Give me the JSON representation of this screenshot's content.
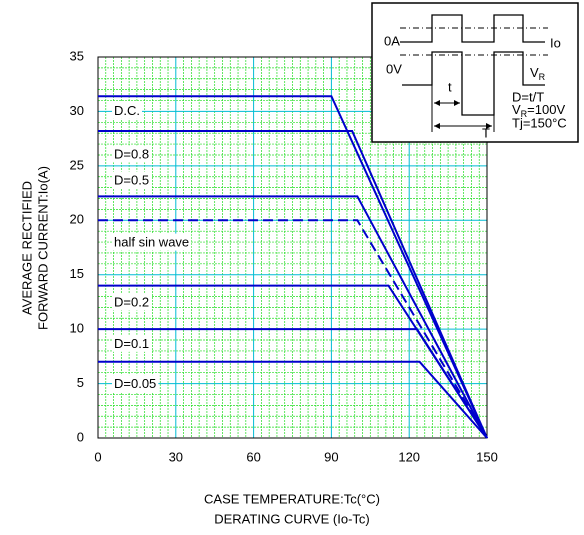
{
  "chart_data": {
    "type": "line",
    "title": "DERATING  CURVE (Io-Tc)",
    "x_label": "CASE TEMPERATURE:Tc(°C)",
    "y_label": [
      "AVERAGE RECTIFIED",
      "FORWARD CURRENT:Io(A)"
    ],
    "xlim": [
      0,
      150
    ],
    "xticks": [
      0,
      30,
      60,
      90,
      120,
      150
    ],
    "ylim": [
      0,
      35
    ],
    "yticks": [
      0,
      5,
      10,
      15,
      20,
      25,
      30,
      35
    ],
    "grid": true,
    "series": [
      {
        "name": "D.C.",
        "color": "#0000cc",
        "x": [
          0,
          90,
          150
        ],
        "values": [
          31.4,
          31.4,
          0
        ]
      },
      {
        "name": "D=0.8",
        "color": "#0000cc",
        "x": [
          0,
          98,
          150
        ],
        "values": [
          28.2,
          28.2,
          0
        ]
      },
      {
        "name": "D=0.5",
        "color": "#0000cc",
        "x": [
          0,
          100,
          150
        ],
        "values": [
          22.2,
          22.2,
          0
        ]
      },
      {
        "name": "half sin wave",
        "color": "#0000cc",
        "dashed": true,
        "x": [
          0,
          100,
          150
        ],
        "values": [
          20,
          20,
          0
        ]
      },
      {
        "name": "D=0.2",
        "color": "#0000cc",
        "x": [
          0,
          112,
          150
        ],
        "values": [
          14,
          14,
          0
        ]
      },
      {
        "name": "D=0.1",
        "color": "#0000cc",
        "x": [
          0,
          123,
          150
        ],
        "values": [
          10,
          10,
          0
        ]
      },
      {
        "name": "D=0.05",
        "color": "#0000cc",
        "x": [
          0,
          124,
          150
        ],
        "values": [
          7,
          7,
          0
        ]
      }
    ],
    "inset": {
      "zero_a": "0A",
      "io": "Io",
      "zero_v": "0V",
      "vr": [
        "V",
        "R"
      ],
      "t": "t",
      "T": "T",
      "duty": "D=t/T",
      "vr_value": [
        "V",
        "R",
        "=100V"
      ],
      "tj": "Tj=150°C"
    }
  }
}
